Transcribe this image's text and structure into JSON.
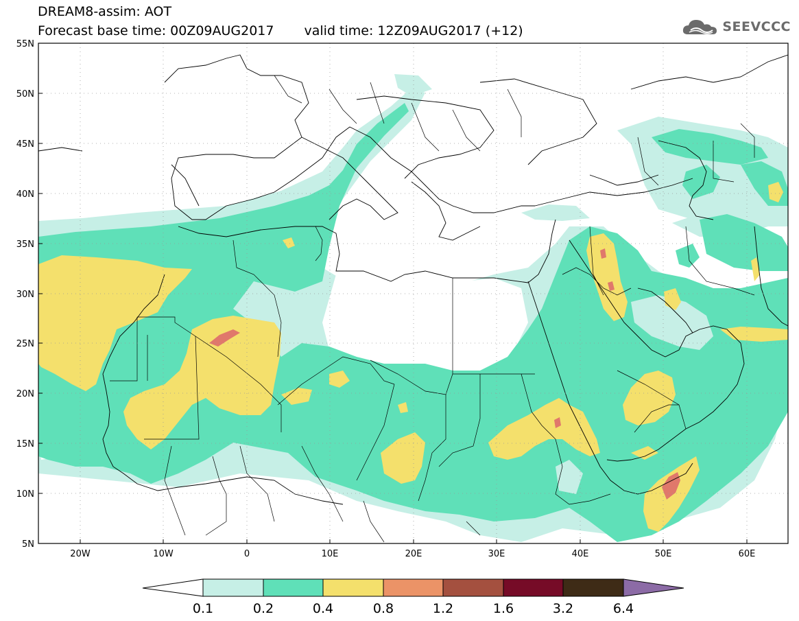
{
  "title": {
    "line1": "DREAM8-assim: AOT",
    "base_time": "Forecast base time: 00Z09AUG2017",
    "valid_time": "valid time: 12Z09AUG2017 (+12)"
  },
  "logo": {
    "text": "SEEVCCC",
    "icon": "cloud-icon"
  },
  "axes": {
    "lat_labels": [
      "55N",
      "50N",
      "45N",
      "40N",
      "35N",
      "30N",
      "25N",
      "20N",
      "15N",
      "10N",
      "5N"
    ],
    "lon_labels": [
      "20W",
      "10W",
      "0",
      "10E",
      "20E",
      "30E",
      "40E",
      "50E",
      "60E"
    ],
    "lon_range": [
      -25,
      65
    ],
    "lat_range": [
      5,
      55
    ]
  },
  "colorbar": {
    "labels": [
      "0.1",
      "0.2",
      "0.4",
      "0.8",
      "1.2",
      "1.6",
      "3.2",
      "6.4"
    ],
    "colors": [
      "#ffffff",
      "#c6efe6",
      "#5fe0b8",
      "#f4e06c",
      "#eb9367",
      "#a4503f",
      "#760b27",
      "#3e2b16",
      "#8c6ba6"
    ]
  },
  "colors": {
    "aot_0_1": "#c6efe6",
    "aot_0_2": "#5fe0b8",
    "aot_0_4": "#f4e06c",
    "aot_0_8": "#e0786b"
  }
}
